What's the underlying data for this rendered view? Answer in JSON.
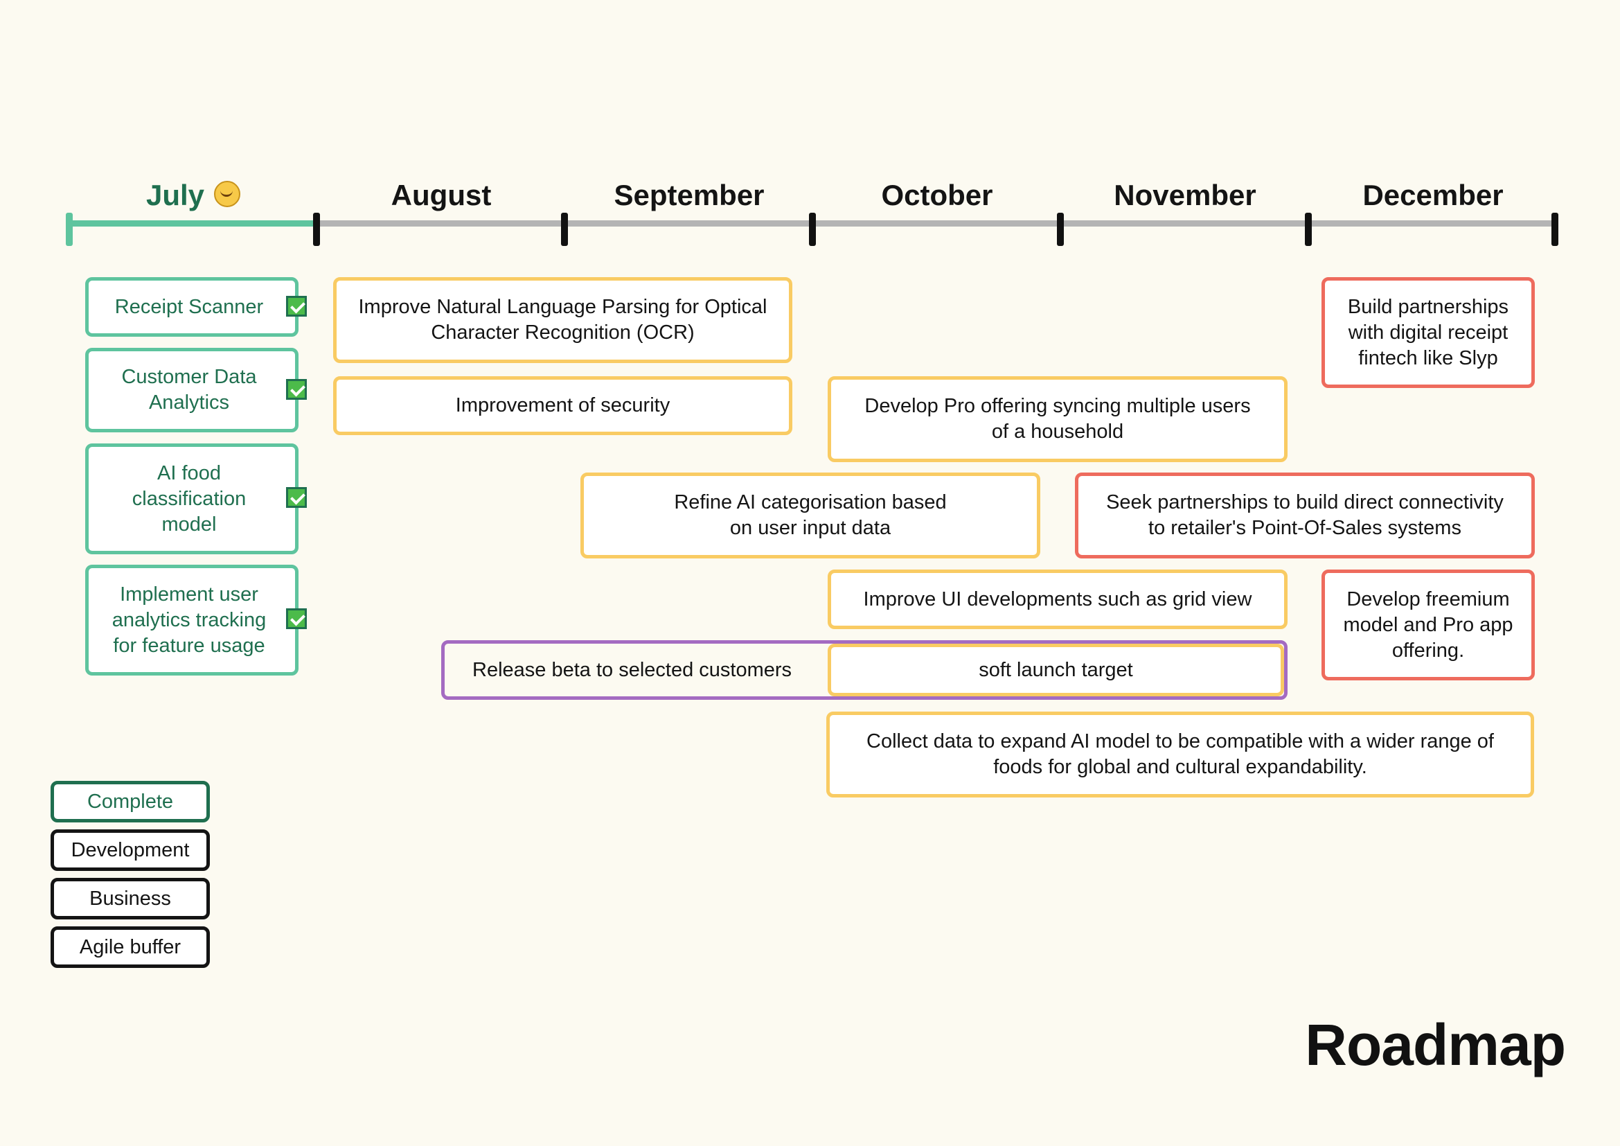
{
  "title": "Roadmap",
  "months": [
    "July",
    "August",
    "September",
    "October",
    "November",
    "December"
  ],
  "current_month_icon": "smiling-face-emoji-icon",
  "colors": {
    "complete": "#5ec49e",
    "development": "#f9cb63",
    "business": "#ee6b5d",
    "agile_buffer": "#a46bc1",
    "timeline": "#b4b4b4"
  },
  "completed": [
    "Receipt Scanner",
    "Customer Data\nAnalytics",
    "AI food\nclassification\nmodel",
    "Implement user\nanalytics tracking\nfor feature usage"
  ],
  "development": [
    "Improve Natural Language Parsing for Optical\nCharacter Recognition (OCR)",
    "Improvement of security",
    "Develop Pro offering syncing multiple users\nof a household",
    "Refine AI categorisation based\non user input data",
    "Improve UI developments such as grid view",
    "soft launch target",
    "Collect data to expand AI model to be compatible with a wider range of\nfoods for global and cultural expandability."
  ],
  "business": [
    "Build partnerships\nwith digital receipt\nfintech like Slyp",
    "Seek partnerships to build direct connectivity\nto retailer's Point-Of-Sales systems",
    "Develop freemium\nmodel and Pro app\noffering."
  ],
  "agile_buffer": [
    "Release beta to selected customers"
  ],
  "legend": [
    "Complete",
    "Development",
    "Business",
    "Agile buffer"
  ]
}
